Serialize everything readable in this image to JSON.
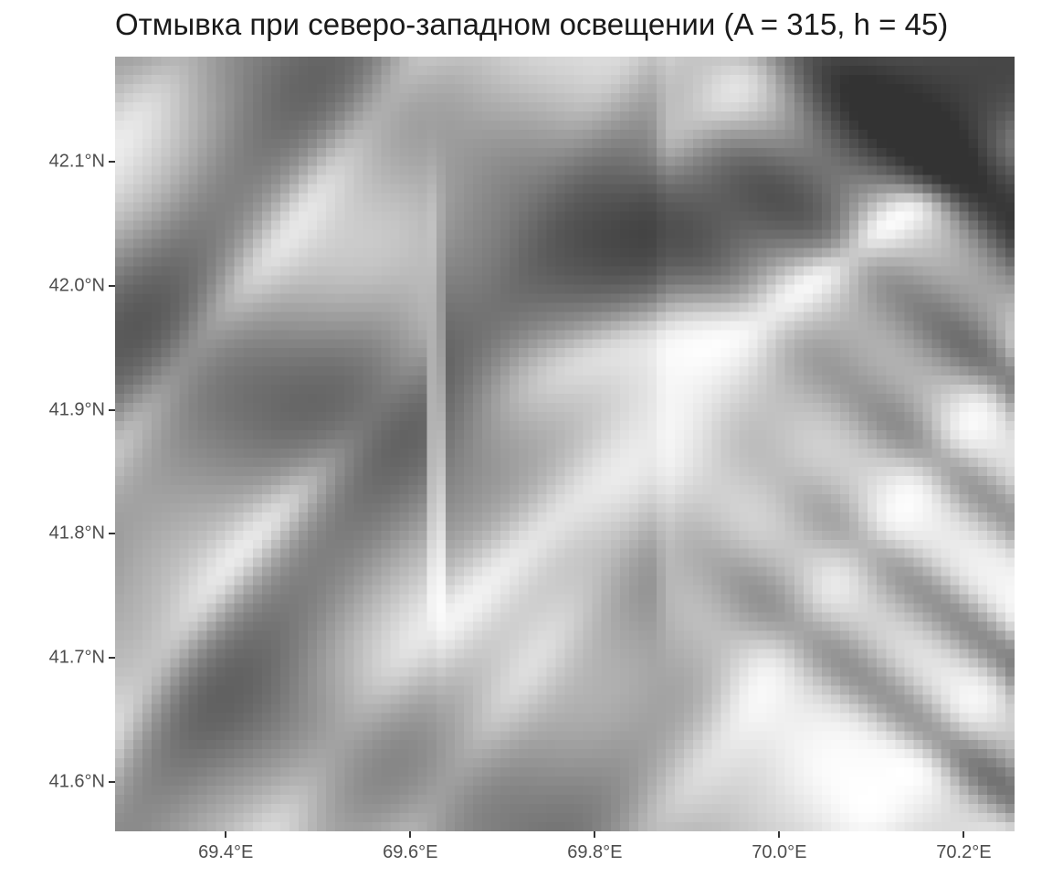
{
  "title": "Отмывка при северо-западном освещении (A = 315, h = 45)",
  "map": {
    "type": "hillshade",
    "colormap": "grayscale",
    "lon_range": [
      69.28,
      70.255
    ],
    "lat_range": [
      41.56,
      42.185
    ],
    "x_ticks": [
      {
        "value": 69.4,
        "label": "69.4°E"
      },
      {
        "value": 69.6,
        "label": "69.6°E"
      },
      {
        "value": 69.8,
        "label": "69.8°E"
      },
      {
        "value": 70.0,
        "label": "70.0°E"
      },
      {
        "value": 70.2,
        "label": "70.2°E"
      }
    ],
    "y_ticks": [
      {
        "value": 41.6,
        "label": "41.6°N"
      },
      {
        "value": 41.7,
        "label": "41.7°N"
      },
      {
        "value": 41.8,
        "label": "41.8°N"
      },
      {
        "value": 41.9,
        "label": "41.9°N"
      },
      {
        "value": 42.0,
        "label": "42.0°N"
      },
      {
        "value": 42.1,
        "label": "42.1°N"
      }
    ],
    "illumination": {
      "azimuth": 315,
      "altitude": 45
    }
  }
}
